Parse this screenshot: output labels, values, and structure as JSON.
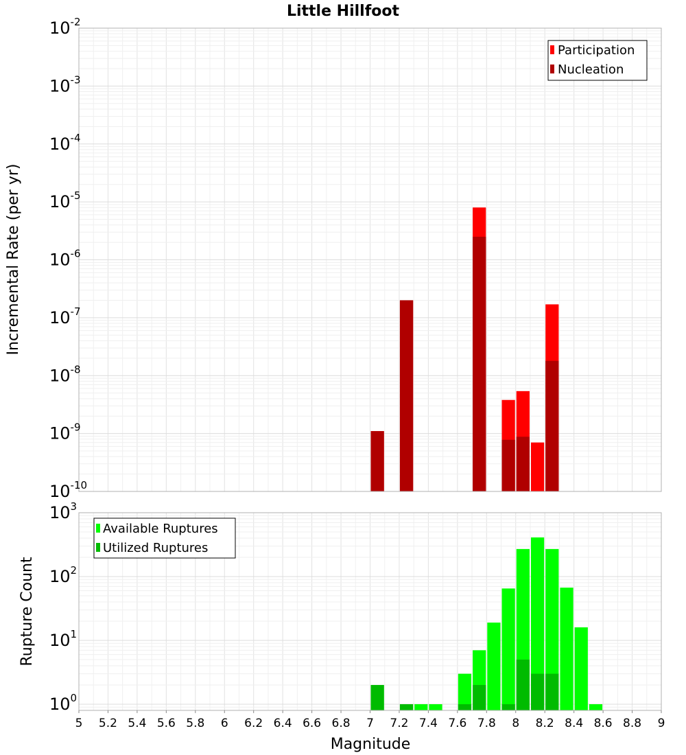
{
  "chart_data": [
    {
      "type": "bar",
      "title": "Little Hillfoot",
      "xlabel": "",
      "ylabel": "Incremental Rate (per yr)",
      "yscale": "log",
      "ylim": [
        1e-10,
        0.01
      ],
      "xlim": [
        5,
        9
      ],
      "grid": true,
      "legend_placement": "top-right",
      "bar_width": 0.1,
      "y_ticks": [
        {
          "base": "10",
          "exp": "-10"
        },
        {
          "base": "10",
          "exp": "-9"
        },
        {
          "base": "10",
          "exp": "-8"
        },
        {
          "base": "10",
          "exp": "-7"
        },
        {
          "base": "10",
          "exp": "-6"
        },
        {
          "base": "10",
          "exp": "-5"
        },
        {
          "base": "10",
          "exp": "-4"
        },
        {
          "base": "10",
          "exp": "-3"
        },
        {
          "base": "10",
          "exp": "-2"
        }
      ],
      "series": [
        {
          "name": "Participation",
          "color": "#ff0000",
          "x": [
            7.05,
            7.25,
            7.75,
            7.95,
            8.05,
            8.15,
            8.25
          ],
          "values": [
            1.1e-09,
            2e-07,
            8e-06,
            3.8e-09,
            5.4e-09,
            7e-10,
            1.7e-07
          ]
        },
        {
          "name": "Nucleation",
          "color": "#b00000",
          "x": [
            7.05,
            7.25,
            7.75,
            7.95,
            8.05,
            8.25
          ],
          "values": [
            1.1e-09,
            2e-07,
            2.5e-06,
            7.8e-10,
            8.8e-10,
            1.8e-08
          ]
        }
      ]
    },
    {
      "type": "bar",
      "title": "",
      "xlabel": "Magnitude",
      "ylabel": "Rupture Count",
      "yscale": "log",
      "ylim": [
        0.8,
        1000
      ],
      "xlim": [
        5,
        9
      ],
      "grid": true,
      "legend_placement": "top-left",
      "bar_width": 0.1,
      "x_ticks": [
        "5",
        "5.2",
        "5.4",
        "5.6",
        "5.8",
        "6",
        "6.2",
        "6.4",
        "6.6",
        "6.8",
        "7",
        "7.2",
        "7.4",
        "7.6",
        "7.8",
        "8",
        "8.2",
        "8.4",
        "8.6",
        "8.8",
        "9"
      ],
      "y_ticks": [
        {
          "base": "10",
          "exp": "0"
        },
        {
          "base": "10",
          "exp": "1"
        },
        {
          "base": "10",
          "exp": "2"
        },
        {
          "base": "10",
          "exp": "3"
        }
      ],
      "series": [
        {
          "name": "Available Ruptures",
          "color": "#00ff00",
          "x": [
            7.05,
            7.25,
            7.35,
            7.45,
            7.65,
            7.75,
            7.85,
            7.95,
            8.05,
            8.15,
            8.25,
            8.35,
            8.45,
            8.55
          ],
          "values": [
            2,
            1,
            1,
            1,
            3,
            7,
            19,
            65,
            270,
            410,
            270,
            67,
            16,
            1
          ]
        },
        {
          "name": "Utilized Ruptures",
          "color": "#00bb00",
          "x": [
            7.05,
            7.25,
            7.65,
            7.75,
            7.95,
            8.05,
            8.15,
            8.25
          ],
          "values": [
            2,
            1,
            1,
            2,
            1,
            5,
            3,
            3
          ]
        }
      ]
    }
  ]
}
